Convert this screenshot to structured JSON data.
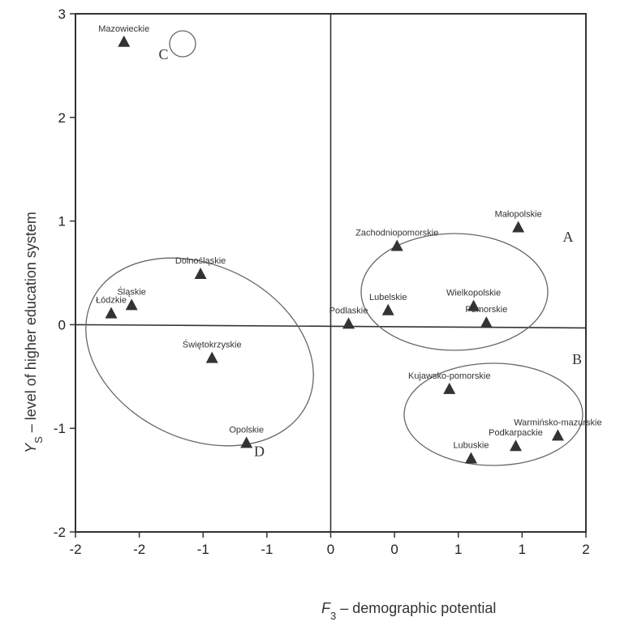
{
  "chart_data": {
    "type": "scatter",
    "title": "",
    "xlabel_var": "F",
    "xlabel_sub": "3",
    "xlabel_rest": " – demographic potential",
    "ylabel_var": "Y",
    "ylabel_sub": "S",
    "ylabel_rest": " – level of higher education system",
    "xlim": [
      -2,
      2
    ],
    "ylim": [
      -2,
      3
    ],
    "xticks": [
      -2,
      -1.5,
      -1,
      -0.5,
      0,
      0.5,
      1,
      1.5,
      2
    ],
    "xtick_labels": [
      "-2",
      "-2",
      "-1",
      "-1",
      "0",
      "0",
      "1",
      "1",
      "2"
    ],
    "yticks": [
      -2,
      -1,
      0,
      1,
      2,
      3
    ],
    "ytick_labels": [
      "-2",
      "-1",
      "0",
      "1",
      "2",
      "3"
    ],
    "grid": false,
    "points": [
      {
        "label": "Mazowieckie",
        "x": -1.62,
        "y": 2.72
      },
      {
        "label": "Małopolskie",
        "x": 1.47,
        "y": 0.93
      },
      {
        "label": "Zachodniopomorskie",
        "x": 0.52,
        "y": 0.75
      },
      {
        "label": "Dolnośląskie",
        "x": -1.02,
        "y": 0.48
      },
      {
        "label": "Śląskie",
        "x": -1.56,
        "y": 0.18
      },
      {
        "label": "Łódzkie",
        "x": -1.72,
        "y": 0.1
      },
      {
        "label": "Lubelskie",
        "x": 0.45,
        "y": 0.13
      },
      {
        "label": "Wielkopolskie",
        "x": 1.12,
        "y": 0.17
      },
      {
        "label": "Podlaskie",
        "x": 0.14,
        "y": 0.0
      },
      {
        "label": "Pomorskie",
        "x": 1.22,
        "y": 0.01
      },
      {
        "label": "Świętokrzyskie",
        "x": -0.93,
        "y": -0.33
      },
      {
        "label": "Kujawsko-pomorskie",
        "x": 0.93,
        "y": -0.63
      },
      {
        "label": "Opolskie",
        "x": -0.66,
        "y": -1.15
      },
      {
        "label": "Lubuskie",
        "x": 1.1,
        "y": -1.3
      },
      {
        "label": "Podkarpackie",
        "x": 1.45,
        "y": -1.18
      },
      {
        "label": "Warmińsko-mazurskie",
        "x": 1.78,
        "y": -1.08
      }
    ],
    "clusters": [
      {
        "label": "C",
        "label_x": -1.31,
        "label_y": 2.56
      },
      {
        "label": "A",
        "label_x": 1.86,
        "label_y": 0.8
      },
      {
        "label": "B",
        "label_x": 1.93,
        "label_y": -0.38
      },
      {
        "label": "D",
        "label_x": -3.0,
        "label_y": -1.03
      },
      {
        "label": "D",
        "label_x": -0.56,
        "label_y": -1.27
      }
    ],
    "colors": {
      "marker": "#333333",
      "axis": "#333333",
      "ellipse": "#666666"
    }
  }
}
